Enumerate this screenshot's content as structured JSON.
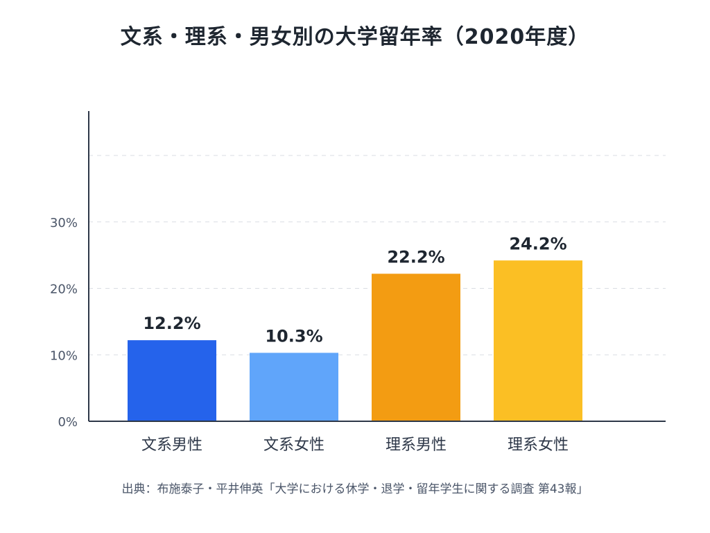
{
  "chart_data": {
    "type": "bar",
    "title": "文系・理系・男女別の大学留年率（2020年度）",
    "categories": [
      "文系男性",
      "文系女性",
      "理系男性",
      "理系女性"
    ],
    "values": [
      12.2,
      10.3,
      22.2,
      24.2
    ],
    "value_labels": [
      "12.2%",
      "10.3%",
      "22.2%",
      "24.2%"
    ],
    "yticks": [
      0,
      10,
      20,
      30
    ],
    "ytick_labels": [
      "0%",
      "10%",
      "20%",
      "30%"
    ],
    "ylim": [
      0,
      47
    ],
    "grid": true,
    "bar_colors": [
      "#2563eb",
      "#60a5fa",
      "#f39c12",
      "#fbbf24"
    ],
    "xlabel": "",
    "ylabel": ""
  },
  "source": "出典：布施泰子・平井伸英「大学における休学・退学・留年学生に関する調査 第43報」"
}
